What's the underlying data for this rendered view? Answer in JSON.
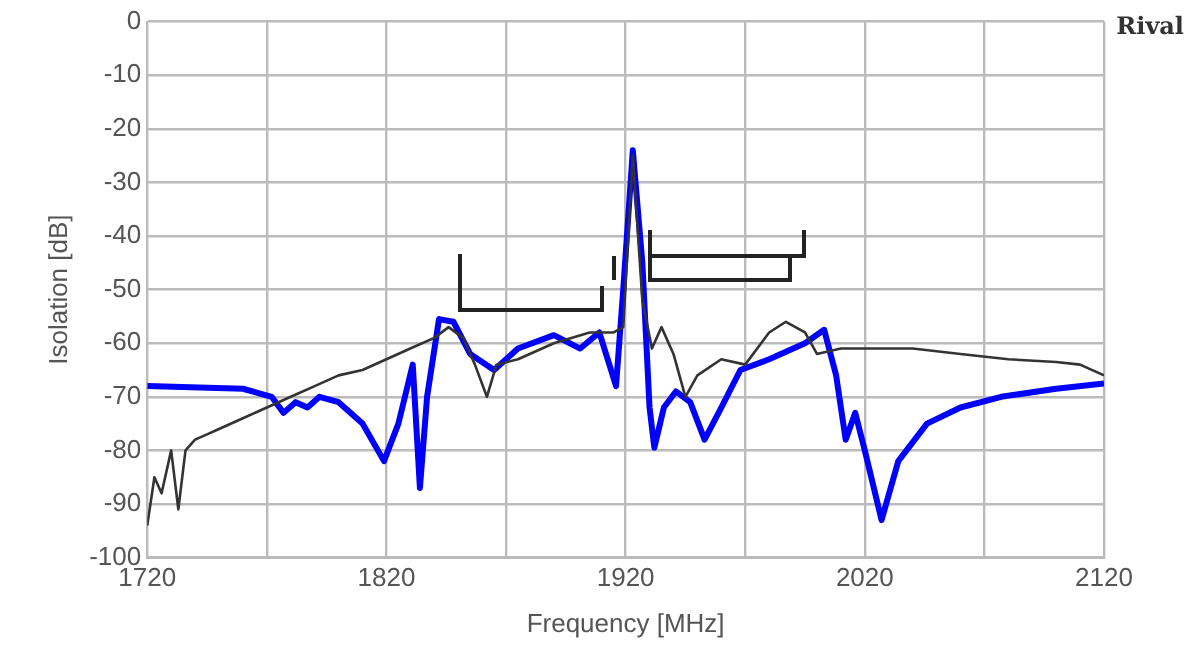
{
  "chart_data": {
    "type": "line",
    "xlabel": "Frequency [MHz]",
    "ylabel": "Isolation [dB]",
    "xlim": [
      1720,
      2120
    ],
    "xticks": [
      1720,
      {
        "value": 1770,
        "label": null
      },
      1820,
      {
        "value": 1870,
        "label": null
      },
      1920,
      {
        "value": 1970,
        "label": null
      },
      2020,
      {
        "value": 2070,
        "label": null
      },
      2120
    ],
    "ylim": [
      -100,
      0
    ],
    "yticks": [
      -100,
      -90,
      -80,
      -70,
      -60,
      -50,
      -40,
      -30,
      -20,
      -10,
      0
    ],
    "grid": true,
    "legend": "top right",
    "marker": "none",
    "line_style": "solid",
    "series": [
      {
        "color": "#0000ff",
        "x": [
          1720,
          1760,
          1772,
          1777,
          1782,
          1787,
          1792,
          1800,
          1810,
          1819,
          1825,
          1831,
          1834,
          1837,
          1842,
          1848,
          1855,
          1865,
          1875,
          1890,
          1901,
          1909,
          1916,
          1919,
          1923,
          1927,
          1930,
          1932,
          1936,
          1941,
          1947,
          1953,
          1960,
          1968,
          1980,
          1995,
          2003,
          2008,
          2012,
          2016,
          2020,
          2027,
          2034,
          2046,
          2060,
          2077,
          2100,
          2120
        ],
        "values": [
          -68,
          -68.5,
          -70,
          -73,
          -71,
          -72,
          -70,
          -71,
          -75,
          -82,
          -75,
          -64,
          -87,
          -70,
          -55.5,
          -56,
          -62,
          -65,
          -61,
          -58.5,
          -61,
          -58,
          -68,
          -50,
          -24,
          -45,
          -72,
          -79.5,
          -72,
          -69,
          -71,
          -78,
          -72,
          -65,
          -63,
          -60,
          -57.5,
          -66,
          -78,
          -73,
          -80,
          -93,
          -82,
          -75,
          -72,
          -70,
          -68.5,
          -67.5
        ]
      },
      {
        "name": "Rival",
        "color": "#333333",
        "x": [
          1720,
          1723,
          1726,
          1730,
          1733,
          1736,
          1740,
          1745,
          1750,
          1760,
          1770,
          1780,
          1790,
          1800,
          1810,
          1820,
          1830,
          1840,
          1846,
          1852,
          1857,
          1862,
          1866,
          1875,
          1890,
          1905,
          1915,
          1919,
          1923,
          1927,
          1931,
          1935,
          1940,
          1945,
          1950,
          1960,
          1970,
          1980,
          1987,
          1995,
          2000,
          2010,
          2025,
          2040,
          2060,
          2080,
          2100,
          2110,
          2120
        ],
        "values": [
          -94,
          -85,
          -88,
          -80,
          -91,
          -80,
          -78,
          -77,
          -76,
          -74,
          -72,
          -70,
          -68,
          -66,
          -65,
          -63,
          -61,
          -59,
          -57,
          -59,
          -64,
          -70,
          -64,
          -63,
          -60,
          -58,
          -58,
          -57,
          -25,
          -52,
          -61,
          -57,
          -62,
          -70,
          -66,
          -63,
          -64,
          -58,
          -56,
          -58,
          -62,
          -61,
          -61,
          -61,
          -62,
          -63,
          -63.5,
          -64,
          -66
        ]
      }
    ]
  }
}
